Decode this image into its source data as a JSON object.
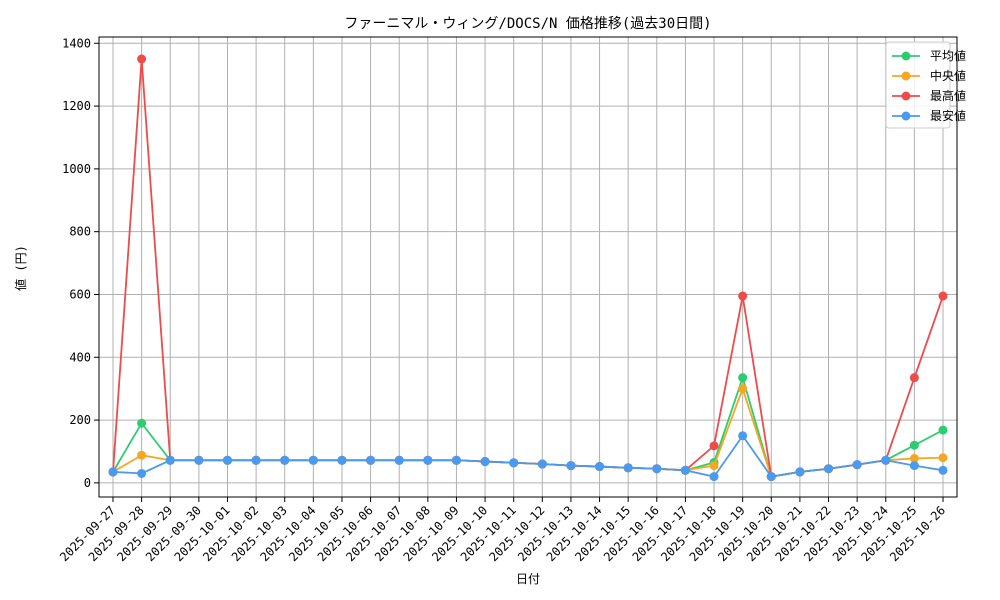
{
  "chart_data": {
    "type": "line",
    "title": "ファーニマル・ウィング/DOCS/N 価格推移(過去30日間)",
    "xlabel": "日付",
    "ylabel": "値 (円)",
    "ylim": [
      -45,
      1420
    ],
    "yticks": [
      0,
      200,
      400,
      600,
      800,
      1000,
      1200,
      1400
    ],
    "grid": true,
    "legend_position": "top-right",
    "categories": [
      "2025-09-27",
      "2025-09-28",
      "2025-09-29",
      "2025-09-30",
      "2025-10-01",
      "2025-10-02",
      "2025-10-03",
      "2025-10-04",
      "2025-10-05",
      "2025-10-06",
      "2025-10-07",
      "2025-10-08",
      "2025-10-09",
      "2025-10-10",
      "2025-10-11",
      "2025-10-12",
      "2025-10-13",
      "2025-10-14",
      "2025-10-15",
      "2025-10-16",
      "2025-10-17",
      "2025-10-18",
      "2025-10-19",
      "2025-10-20",
      "2025-10-21",
      "2025-10-22",
      "2025-10-23",
      "2025-10-24",
      "2025-10-25",
      "2025-10-26"
    ],
    "series": [
      {
        "name": "平均値",
        "color": "#2ecc71",
        "values": [
          35,
          190,
          72,
          72,
          72,
          72,
          72,
          72,
          72,
          72,
          72,
          72,
          72,
          68,
          64,
          60,
          55,
          52,
          48,
          45,
          40,
          65,
          335,
          20,
          35,
          45,
          58,
          72,
          120,
          168
        ]
      },
      {
        "name": "中央値",
        "color": "#f5a623",
        "values": [
          35,
          88,
          72,
          72,
          72,
          72,
          72,
          72,
          72,
          72,
          72,
          72,
          72,
          68,
          64,
          60,
          55,
          52,
          48,
          45,
          40,
          55,
          300,
          20,
          35,
          45,
          58,
          72,
          78,
          80
        ]
      },
      {
        "name": "最高値",
        "color": "#ef4b4b",
        "values": [
          35,
          1350,
          72,
          72,
          72,
          72,
          72,
          72,
          72,
          72,
          72,
          72,
          72,
          68,
          64,
          60,
          55,
          52,
          48,
          45,
          40,
          118,
          595,
          20,
          35,
          45,
          58,
          72,
          335,
          595
        ]
      },
      {
        "name": "最安値",
        "color": "#4a9af0",
        "values": [
          35,
          30,
          72,
          72,
          72,
          72,
          72,
          72,
          72,
          72,
          72,
          72,
          72,
          68,
          64,
          60,
          55,
          52,
          48,
          45,
          40,
          20,
          150,
          20,
          35,
          45,
          58,
          72,
          55,
          40
        ]
      }
    ]
  }
}
